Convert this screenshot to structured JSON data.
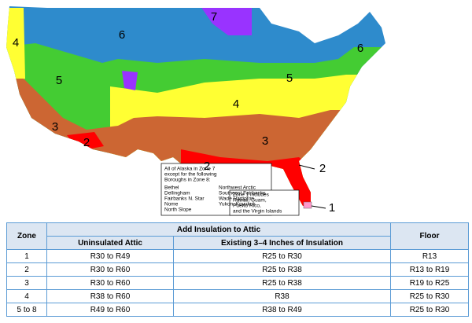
{
  "map": {
    "zone_labels": [
      "7",
      "6",
      "6",
      "4",
      "5",
      "5",
      "4",
      "3",
      "3",
      "2",
      "2",
      "2",
      "1"
    ]
  },
  "alaska_note": {
    "intro": [
      "All of Alaska in Zone 7",
      "except for the following",
      "Boroughs in Zone 8:"
    ],
    "left": [
      "Bethel",
      "Dellingham",
      "Fairbanks N. Star",
      "Nome",
      "North Slope"
    ],
    "right": [
      "Northwest Arctic",
      "Southeast Fairbanks",
      "Wade Hampton",
      "Yukon–Koyukuk"
    ]
  },
  "zone1_note": [
    "Zone 1 includes",
    "Hawaii, Guam,",
    "Puerto Rico,",
    "and the Virgin Islands"
  ],
  "table": {
    "header": {
      "zone": "Zone",
      "group": "Add Insulation to Attic",
      "floor": "Floor",
      "uninsulated": "Uninsulated Attic",
      "existing": "Existing 3–4 Inches of Insulation"
    },
    "rows": [
      [
        "1",
        "R30 to R49",
        "R25 to R30",
        "R13"
      ],
      [
        "2",
        "R30 to R60",
        "R25 to R38",
        "R13 to R19"
      ],
      [
        "3",
        "R30 to R60",
        "R25 to R38",
        "R19 to R25"
      ],
      [
        "4",
        "R38 to R60",
        "R38",
        "R25 to R30"
      ],
      [
        "5 to 8",
        "R49 to R60",
        "R38 to R49",
        "R25 to R30"
      ]
    ]
  }
}
